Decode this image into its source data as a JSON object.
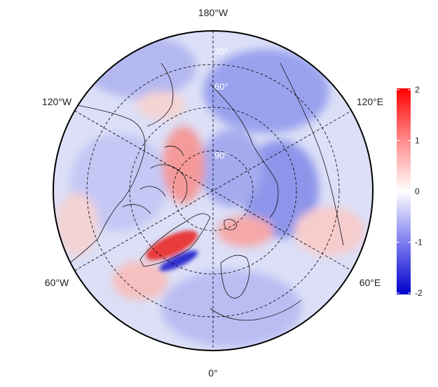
{
  "map": {
    "projection": "north-polar-stereographic",
    "longitude_labels": {
      "top": "180°W",
      "upper_left": "120°W",
      "upper_right": "120°E",
      "lower_left": "60°W",
      "lower_right": "60°E",
      "bottom": "0°"
    },
    "latitude_labels": [
      "30°",
      "60°",
      "90°"
    ],
    "colorbar": {
      "ticks": [
        "2",
        "1",
        "0",
        "-1",
        "-2"
      ],
      "min": -2,
      "max": 2,
      "colors": {
        "high": "#ff0000",
        "mid": "#ffffff",
        "low": "#0000cc"
      }
    },
    "colors": {
      "border": "#000000",
      "graticule": "#000000",
      "coastline": "#111111"
    }
  }
}
